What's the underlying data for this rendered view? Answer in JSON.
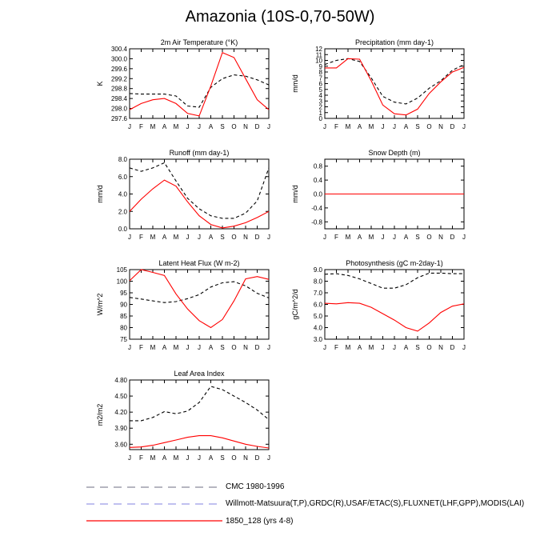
{
  "title": "Amazonia (10S-0,70-50W)",
  "months": [
    "J",
    "F",
    "M",
    "A",
    "M",
    "J",
    "J",
    "A",
    "S",
    "O",
    "N",
    "D",
    "J"
  ],
  "legend": [
    {
      "label": "CMC 1980-1996",
      "style": "dash-gray",
      "color": "#8a8a9a"
    },
    {
      "label": "Willmott-Matsuura(T,P),GRDC(R),USAF/ETAC(S),FLUXNET(LHF,GPP),MODIS(LAI)",
      "style": "dash-blue",
      "color": "#9a9ae6"
    },
    {
      "label": "1850_128 (yrs 4-8)",
      "style": "solid-red",
      "color": "#ff0000"
    }
  ],
  "chart_data": [
    {
      "type": "line",
      "title": "2m Air Temperature (°K)",
      "ylabel": "K",
      "ylim": [
        297.6,
        300.4
      ],
      "yticks": [
        "297.6",
        "298.0",
        "298.4",
        "298.8",
        "299.2",
        "299.6",
        "300.0",
        "300.4"
      ],
      "series": [
        {
          "style": "dash",
          "values": [
            298.6,
            298.58,
            298.58,
            298.58,
            298.5,
            298.1,
            298.05,
            298.85,
            299.2,
            299.35,
            299.3,
            299.15,
            298.95
          ]
        },
        {
          "style": "solid",
          "values": [
            297.95,
            298.2,
            298.35,
            298.4,
            298.2,
            297.8,
            297.7,
            298.9,
            300.25,
            300.05,
            299.2,
            298.35,
            297.95
          ]
        }
      ]
    },
    {
      "type": "line",
      "title": "Precipitation (mm day-1)",
      "ylabel": "mm/d",
      "ylim": [
        0,
        12
      ],
      "yticks": [
        "0",
        "1",
        "2",
        "3",
        "4",
        "5",
        "6",
        "7",
        "8",
        "9",
        "10",
        "11",
        "12"
      ],
      "series": [
        {
          "style": "dash",
          "values": [
            9.3,
            10.0,
            10.3,
            9.8,
            7.0,
            3.8,
            2.8,
            2.5,
            3.5,
            5.2,
            6.5,
            8.3,
            9.3
          ]
        },
        {
          "style": "solid",
          "values": [
            8.7,
            8.7,
            10.3,
            10.2,
            6.5,
            2.3,
            0.8,
            0.6,
            1.6,
            4.3,
            6.3,
            8.0,
            8.8
          ]
        }
      ]
    },
    {
      "type": "line",
      "title": "Runoff (mm day-1)",
      "ylabel": "mm/d",
      "ylim": [
        0,
        8
      ],
      "yticks": [
        "0.0",
        "2.0",
        "4.0",
        "6.0",
        "8.0"
      ],
      "series": [
        {
          "style": "dash",
          "values": [
            7.0,
            6.6,
            7.0,
            7.6,
            5.5,
            3.5,
            2.3,
            1.5,
            1.2,
            1.2,
            1.8,
            3.2,
            7.0
          ]
        },
        {
          "style": "solid",
          "values": [
            2.0,
            3.4,
            4.6,
            5.6,
            4.9,
            3.1,
            1.5,
            0.5,
            0.1,
            0.3,
            0.7,
            1.3,
            2.0
          ]
        }
      ]
    },
    {
      "type": "line",
      "title": "Snow Depth (m)",
      "ylabel": "mm/d",
      "ylim": [
        -1.0,
        1.0
      ],
      "yticks": [
        "-0.8",
        "-0.4",
        "0.0",
        "0.4",
        "0.8"
      ],
      "series": [
        {
          "style": "dash",
          "values": [
            0,
            0,
            0,
            0,
            0,
            0,
            0,
            0,
            0,
            0,
            0,
            0,
            0
          ]
        },
        {
          "style": "solid",
          "values": [
            0,
            0,
            0,
            0,
            0,
            0,
            0,
            0,
            0,
            0,
            0,
            0,
            0
          ]
        }
      ]
    },
    {
      "type": "line",
      "title": "Latent Heat Flux (W m-2)",
      "ylabel": "W/m^2",
      "ylim": [
        75,
        105
      ],
      "yticks": [
        "75",
        "80",
        "85",
        "90",
        "95",
        "100",
        "105"
      ],
      "series": [
        {
          "style": "dash",
          "values": [
            93.0,
            92.3,
            91.5,
            90.8,
            91.2,
            92.5,
            94.2,
            97.5,
            99.3,
            99.8,
            98.0,
            94.8,
            92.8
          ]
        },
        {
          "style": "solid",
          "values": [
            100.2,
            105.0,
            103.8,
            102.5,
            94.5,
            88.0,
            83.0,
            80.0,
            83.5,
            91.5,
            101.0,
            102.0,
            100.8
          ]
        }
      ]
    },
    {
      "type": "line",
      "title": "Photosynthesis (gC m-2day-1)",
      "ylabel": "gC/m^2/d",
      "ylim": [
        3.0,
        9.0
      ],
      "yticks": [
        "3.0",
        "4.0",
        "5.0",
        "6.0",
        "7.0",
        "8.0",
        "9.0"
      ],
      "series": [
        {
          "style": "dash",
          "values": [
            8.6,
            8.65,
            8.5,
            8.2,
            7.8,
            7.4,
            7.4,
            7.7,
            8.3,
            8.7,
            8.7,
            8.65,
            8.65
          ]
        },
        {
          "style": "solid",
          "values": [
            6.1,
            6.05,
            6.15,
            6.1,
            5.75,
            5.2,
            4.65,
            4.0,
            3.7,
            4.4,
            5.3,
            5.85,
            6.05
          ]
        }
      ]
    },
    {
      "type": "line",
      "title": "Leaf Area Index",
      "ylabel": "m2/m2",
      "ylim": [
        3.5,
        4.8
      ],
      "yticks": [
        "3.60",
        "3.90",
        "4.20",
        "4.50",
        "4.80"
      ],
      "series": [
        {
          "style": "dash",
          "values": [
            4.04,
            4.04,
            4.1,
            4.21,
            4.17,
            4.22,
            4.38,
            4.68,
            4.62,
            4.5,
            4.38,
            4.24,
            4.06
          ]
        },
        {
          "style": "solid",
          "values": [
            3.54,
            3.55,
            3.58,
            3.63,
            3.68,
            3.73,
            3.76,
            3.76,
            3.72,
            3.66,
            3.6,
            3.56,
            3.53
          ]
        }
      ]
    }
  ]
}
